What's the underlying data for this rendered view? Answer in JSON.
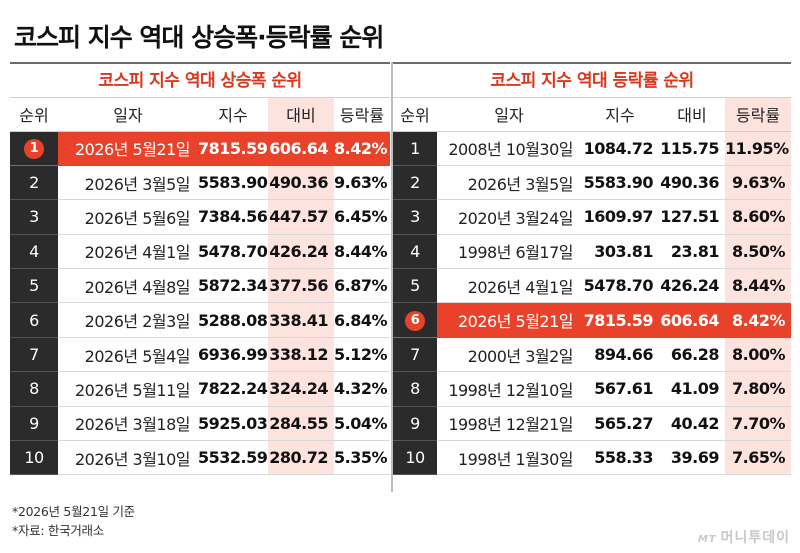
{
  "title": "코스피 지수 역대 상승폭·등락률 순위",
  "left_table": {
    "title": "코스피 지수 역대 상승폭 순위",
    "headers": [
      "순위",
      "일자",
      "지수",
      "대비",
      "등락률"
    ],
    "rows": [
      {
        "rank": "1",
        "date": "2026년 5월21일",
        "index": "7815.59",
        "change": "606.64",
        "pct": "8.42%"
      },
      {
        "rank": "2",
        "date": "2026년 3월5일",
        "index": "5583.90",
        "change": "490.36",
        "pct": "9.63%"
      },
      {
        "rank": "3",
        "date": "2026년 5월6일",
        "index": "7384.56",
        "change": "447.57",
        "pct": "6.45%"
      },
      {
        "rank": "4",
        "date": "2026년 4월1일",
        "index": "5478.70",
        "change": "426.24",
        "pct": "8.44%"
      },
      {
        "rank": "5",
        "date": "2026년 4월8일",
        "index": "5872.34",
        "change": "377.56",
        "pct": "6.87%"
      },
      {
        "rank": "6",
        "date": "2026년 2월3일",
        "index": "5288.08",
        "change": "338.41",
        "pct": "6.84%"
      },
      {
        "rank": "7",
        "date": "2026년 5월4일",
        "index": "6936.99",
        "change": "338.12",
        "pct": "5.12%"
      },
      {
        "rank": "8",
        "date": "2026년 5월11일",
        "index": "7822.24",
        "change": "324.24",
        "pct": "4.32%"
      },
      {
        "rank": "9",
        "date": "2026년 3월18일",
        "index": "5925.03",
        "change": "284.55",
        "pct": "5.04%"
      },
      {
        "rank": "10",
        "date": "2026년 3월10일",
        "index": "5532.59",
        "change": "280.72",
        "pct": "5.35%"
      }
    ]
  },
  "right_table": {
    "title": "코스피 지수 역대 등락률 순위",
    "headers": [
      "순위",
      "일자",
      "지수",
      "대비",
      "등락률"
    ],
    "rows": [
      {
        "rank": "1",
        "date": "2008년 10월30일",
        "index": "1084.72",
        "change": "115.75",
        "pct": "11.95%"
      },
      {
        "rank": "2",
        "date": "2026년 3월5일",
        "index": "5583.90",
        "change": "490.36",
        "pct": "9.63%"
      },
      {
        "rank": "3",
        "date": "2020년 3월24일",
        "index": "1609.97",
        "change": "127.51",
        "pct": "8.60%"
      },
      {
        "rank": "4",
        "date": "1998년 6월17일",
        "index": "303.81",
        "change": "23.81",
        "pct": "8.50%"
      },
      {
        "rank": "5",
        "date": "2026년 4월1일",
        "index": "5478.70",
        "change": "426.24",
        "pct": "8.44%"
      },
      {
        "rank": "6",
        "date": "2026년 5월21일",
        "index": "7815.59",
        "change": "606.64",
        "pct": "8.42%"
      },
      {
        "rank": "7",
        "date": "2000년 3월2일",
        "index": "894.66",
        "change": "66.28",
        "pct": "8.00%"
      },
      {
        "rank": "8",
        "date": "1998년 12월10일",
        "index": "567.61",
        "change": "41.09",
        "pct": "7.80%"
      },
      {
        "rank": "9",
        "date": "1998년 12월21일",
        "index": "565.27",
        "change": "40.42",
        "pct": "7.70%"
      },
      {
        "rank": "10",
        "date": "1998년 1월30일",
        "index": "558.33",
        "change": "39.69",
        "pct": "7.65%"
      }
    ]
  },
  "notes": {
    "basis": "*2026년 5월21일 기준",
    "source": "*자료: 한국거래소"
  },
  "logo": {
    "mt": "MT",
    "name": "머니투데이"
  },
  "colors": {
    "highlight_row": "#e8432a",
    "highlight_col": "#fde3dd",
    "rank_col": "#2b2b2b",
    "title_red": "#d9381e"
  }
}
